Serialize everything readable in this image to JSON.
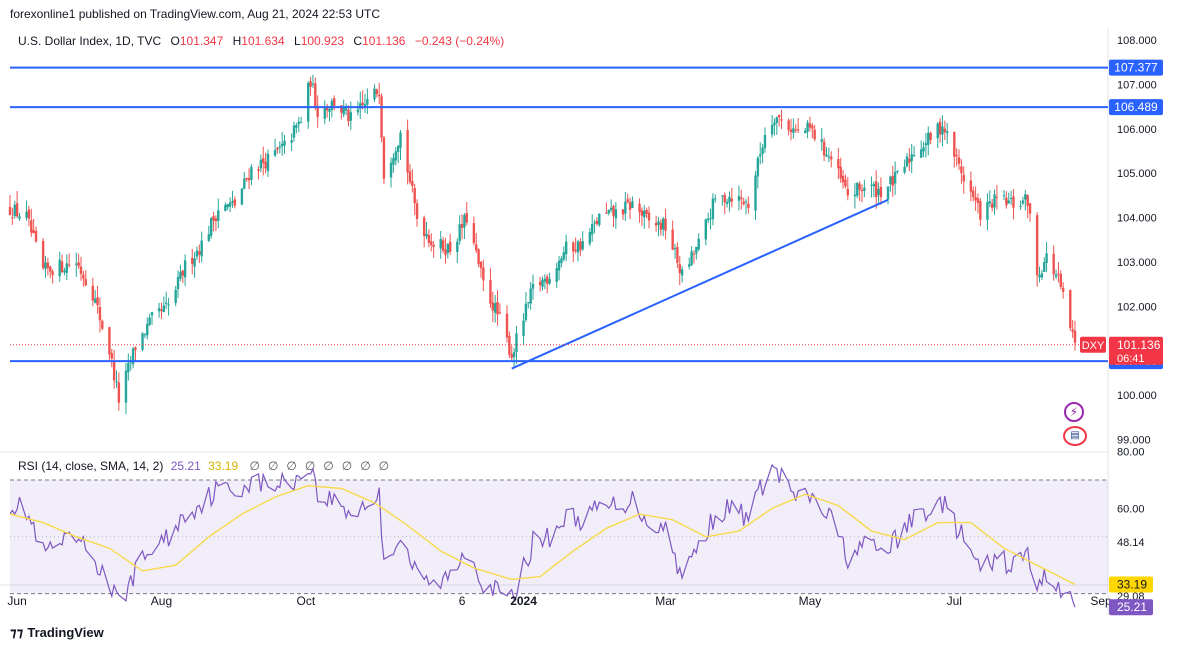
{
  "header": {
    "published_text": "forexonline1 published on TradingView.com, Aug 21, 2024 22:53 UTC"
  },
  "legend": {
    "symbol": "U.S. Dollar Index, 1D, TVC",
    "o_label": "O",
    "o_value": "101.347",
    "h_label": "H",
    "h_value": "101.634",
    "l_label": "L",
    "l_value": "100.923",
    "c_label": "C",
    "c_value": "101.136",
    "change": "−0.243 (−0.24%)"
  },
  "rsi_legend": {
    "label": "RSI (14, close, SMA, 14, 2)",
    "rsi_value": "25.21",
    "sma_value": "33.19",
    "empty_symbols": [
      "∅",
      "∅",
      "∅",
      "∅",
      "∅",
      "∅",
      "∅",
      "∅"
    ]
  },
  "footer": {
    "brand": "TradingView"
  },
  "icons": {
    "bolt": "lightning-icon",
    "flag": "us-flag-icon"
  },
  "colors": {
    "up": "#26a69a",
    "down": "#ef5350",
    "level_line": "#2962ff",
    "rsi_line": "#7e57c2",
    "rsi_sma": "#f7d94c",
    "price_tag": "#f23645"
  },
  "chart_data": [
    {
      "type": "candlestick",
      "symbol": "DXY",
      "price_tag": {
        "label": "DXY",
        "value": "101.136",
        "countdown": "06:41",
        "price": 101.136
      },
      "ylim": [
        99.0,
        108.0
      ],
      "y_ticks": [
        "108.000",
        "107.000",
        "106.000",
        "105.000",
        "104.000",
        "103.000",
        "102.000",
        "100.000",
        "99.000"
      ],
      "y_tick_values": [
        108,
        107,
        106,
        105,
        104,
        103,
        102,
        100,
        99
      ],
      "x_ticks": [
        "Jun",
        "Aug",
        "Oct",
        "6",
        "2024",
        "Mar",
        "May",
        "Jul",
        "Sep"
      ],
      "horizontal_levels": [
        {
          "label": "107.377",
          "price": 107.377
        },
        {
          "label": "106.489",
          "price": 106.489
        },
        {
          "label": "100.768",
          "price": 100.768
        }
      ],
      "trendline": {
        "from": {
          "date": "2023-12-27",
          "price": 100.6
        },
        "to": {
          "date": "2024-06-03",
          "price": 104.4
        }
      },
      "close_path": [
        [
          "2023-05-29",
          104.2
        ],
        [
          "2023-06-05",
          104.0
        ],
        [
          "2023-06-12",
          102.8
        ],
        [
          "2023-06-19",
          102.9
        ],
        [
          "2023-06-26",
          103.0
        ],
        [
          "2023-07-03",
          102.3
        ],
        [
          "2023-07-10",
          101.0
        ],
        [
          "2023-07-14",
          99.9
        ],
        [
          "2023-07-21",
          101.1
        ],
        [
          "2023-07-28",
          101.7
        ],
        [
          "2023-08-04",
          102.0
        ],
        [
          "2023-08-11",
          102.9
        ],
        [
          "2023-08-18",
          103.4
        ],
        [
          "2023-08-25",
          104.2
        ],
        [
          "2023-09-01",
          104.3
        ],
        [
          "2023-09-08",
          105.1
        ],
        [
          "2023-09-15",
          105.3
        ],
        [
          "2023-09-22",
          105.6
        ],
        [
          "2023-09-29",
          106.2
        ],
        [
          "2023-10-03",
          107.1
        ],
        [
          "2023-10-06",
          106.4
        ],
        [
          "2023-10-13",
          106.6
        ],
        [
          "2023-10-20",
          106.2
        ],
        [
          "2023-10-27",
          106.6
        ],
        [
          "2023-11-01",
          106.9
        ],
        [
          "2023-11-03",
          105.0
        ],
        [
          "2023-11-10",
          105.9
        ],
        [
          "2023-11-17",
          104.0
        ],
        [
          "2023-11-24",
          103.4
        ],
        [
          "2023-12-01",
          103.3
        ],
        [
          "2023-12-08",
          104.0
        ],
        [
          "2023-12-15",
          102.5
        ],
        [
          "2023-12-22",
          101.7
        ],
        [
          "2023-12-27",
          100.9
        ],
        [
          "2024-01-05",
          102.4
        ],
        [
          "2024-01-12",
          102.7
        ],
        [
          "2024-01-19",
          103.3
        ],
        [
          "2024-01-26",
          103.4
        ],
        [
          "2024-02-02",
          104.0
        ],
        [
          "2024-02-09",
          104.1
        ],
        [
          "2024-02-16",
          104.3
        ],
        [
          "2024-02-23",
          103.9
        ],
        [
          "2024-03-01",
          103.8
        ],
        [
          "2024-03-08",
          102.7
        ],
        [
          "2024-03-15",
          103.4
        ],
        [
          "2024-03-22",
          104.4
        ],
        [
          "2024-03-29",
          104.5
        ],
        [
          "2024-04-05",
          104.3
        ],
        [
          "2024-04-12",
          105.9
        ],
        [
          "2024-04-16",
          106.3
        ],
        [
          "2024-04-26",
          105.9
        ],
        [
          "2024-05-01",
          106.0
        ],
        [
          "2024-05-10",
          105.3
        ],
        [
          "2024-05-17",
          104.5
        ],
        [
          "2024-05-24",
          104.7
        ],
        [
          "2024-05-31",
          104.6
        ],
        [
          "2024-06-07",
          104.9
        ],
        [
          "2024-06-14",
          105.5
        ],
        [
          "2024-06-21",
          105.8
        ],
        [
          "2024-06-26",
          106.1
        ],
        [
          "2024-07-05",
          104.9
        ],
        [
          "2024-07-12",
          104.1
        ],
        [
          "2024-07-19",
          104.4
        ],
        [
          "2024-07-26",
          104.3
        ],
        [
          "2024-08-01",
          104.4
        ],
        [
          "2024-08-05",
          102.7
        ],
        [
          "2024-08-09",
          103.1
        ],
        [
          "2024-08-14",
          102.6
        ],
        [
          "2024-08-21",
          101.1
        ]
      ]
    },
    {
      "type": "line",
      "name": "RSI (14, close, SMA, 14, 2)",
      "ylim": [
        20,
        80
      ],
      "y_ticks": [
        "80.00",
        "60.00",
        "48.14",
        "29.08"
      ],
      "y_tick_values": [
        80,
        60,
        48.14,
        29.08
      ],
      "band": {
        "upper": 70,
        "lower": 30
      },
      "value_tags": [
        {
          "label": "33.19",
          "value": 33.19,
          "role": "sma"
        },
        {
          "label": "25.21",
          "value": 25.21,
          "role": "rsi"
        }
      ],
      "series": [
        {
          "role": "rsi",
          "points": [
            [
              "2023-05-29",
              62
            ],
            [
              "2023-06-05",
              59
            ],
            [
              "2023-06-12",
              44
            ],
            [
              "2023-06-19",
              47
            ],
            [
              "2023-06-26",
              49
            ],
            [
              "2023-07-03",
              43
            ],
            [
              "2023-07-10",
              33
            ],
            [
              "2023-07-14",
              26
            ],
            [
              "2023-07-21",
              38
            ],
            [
              "2023-07-28",
              46
            ],
            [
              "2023-08-04",
              50
            ],
            [
              "2023-08-11",
              58
            ],
            [
              "2023-08-18",
              62
            ],
            [
              "2023-08-25",
              67
            ],
            [
              "2023-09-01",
              66
            ],
            [
              "2023-09-08",
              70
            ],
            [
              "2023-09-15",
              68
            ],
            [
              "2023-09-22",
              69
            ],
            [
              "2023-09-29",
              71
            ],
            [
              "2023-10-03",
              76
            ],
            [
              "2023-10-06",
              64
            ],
            [
              "2023-10-13",
              63
            ],
            [
              "2023-10-20",
              58
            ],
            [
              "2023-10-27",
              62
            ],
            [
              "2023-11-01",
              64
            ],
            [
              "2023-11-03",
              42
            ],
            [
              "2023-11-10",
              50
            ],
            [
              "2023-11-17",
              36
            ],
            [
              "2023-11-24",
              33
            ],
            [
              "2023-12-01",
              36
            ],
            [
              "2023-12-08",
              46
            ],
            [
              "2023-12-15",
              34
            ],
            [
              "2023-12-22",
              30
            ],
            [
              "2023-12-27",
              28
            ],
            [
              "2024-01-05",
              48
            ],
            [
              "2024-01-12",
              50
            ],
            [
              "2024-01-19",
              57
            ],
            [
              "2024-01-26",
              56
            ],
            [
              "2024-02-02",
              60
            ],
            [
              "2024-02-09",
              61
            ],
            [
              "2024-02-16",
              63
            ],
            [
              "2024-02-23",
              55
            ],
            [
              "2024-03-01",
              53
            ],
            [
              "2024-03-08",
              36
            ],
            [
              "2024-03-15",
              47
            ],
            [
              "2024-03-22",
              58
            ],
            [
              "2024-03-29",
              60
            ],
            [
              "2024-04-05",
              57
            ],
            [
              "2024-04-12",
              70
            ],
            [
              "2024-04-16",
              74
            ],
            [
              "2024-04-26",
              63
            ],
            [
              "2024-05-01",
              64
            ],
            [
              "2024-05-10",
              56
            ],
            [
              "2024-05-17",
              43
            ],
            [
              "2024-05-24",
              47
            ],
            [
              "2024-05-31",
              45
            ],
            [
              "2024-06-07",
              49
            ],
            [
              "2024-06-14",
              57
            ],
            [
              "2024-06-21",
              60
            ],
            [
              "2024-06-26",
              62
            ],
            [
              "2024-07-05",
              49
            ],
            [
              "2024-07-12",
              38
            ],
            [
              "2024-07-19",
              42
            ],
            [
              "2024-07-26",
              40
            ],
            [
              "2024-08-01",
              44
            ],
            [
              "2024-08-05",
              31
            ],
            [
              "2024-08-09",
              37
            ],
            [
              "2024-08-14",
              33
            ],
            [
              "2024-08-21",
              25.21
            ]
          ]
        },
        {
          "role": "sma",
          "points": [
            [
              "2023-05-29",
              58
            ],
            [
              "2023-06-12",
              55
            ],
            [
              "2023-06-26",
              50
            ],
            [
              "2023-07-10",
              46
            ],
            [
              "2023-07-24",
              38
            ],
            [
              "2023-08-07",
              40
            ],
            [
              "2023-08-21",
              50
            ],
            [
              "2023-09-04",
              58
            ],
            [
              "2023-09-18",
              64
            ],
            [
              "2023-10-02",
              68
            ],
            [
              "2023-10-16",
              67
            ],
            [
              "2023-10-30",
              62
            ],
            [
              "2023-11-13",
              54
            ],
            [
              "2023-11-27",
              45
            ],
            [
              "2023-12-11",
              39
            ],
            [
              "2023-12-27",
              35
            ],
            [
              "2024-01-08",
              36
            ],
            [
              "2024-01-22",
              45
            ],
            [
              "2024-02-05",
              53
            ],
            [
              "2024-02-19",
              58
            ],
            [
              "2024-03-04",
              56
            ],
            [
              "2024-03-18",
              50
            ],
            [
              "2024-04-01",
              52
            ],
            [
              "2024-04-15",
              60
            ],
            [
              "2024-04-29",
              65
            ],
            [
              "2024-05-13",
              61
            ],
            [
              "2024-05-27",
              52
            ],
            [
              "2024-06-10",
              49
            ],
            [
              "2024-06-24",
              55
            ],
            [
              "2024-07-08",
              55
            ],
            [
              "2024-07-22",
              46
            ],
            [
              "2024-08-05",
              40
            ],
            [
              "2024-08-21",
              33.19
            ]
          ]
        }
      ]
    }
  ]
}
